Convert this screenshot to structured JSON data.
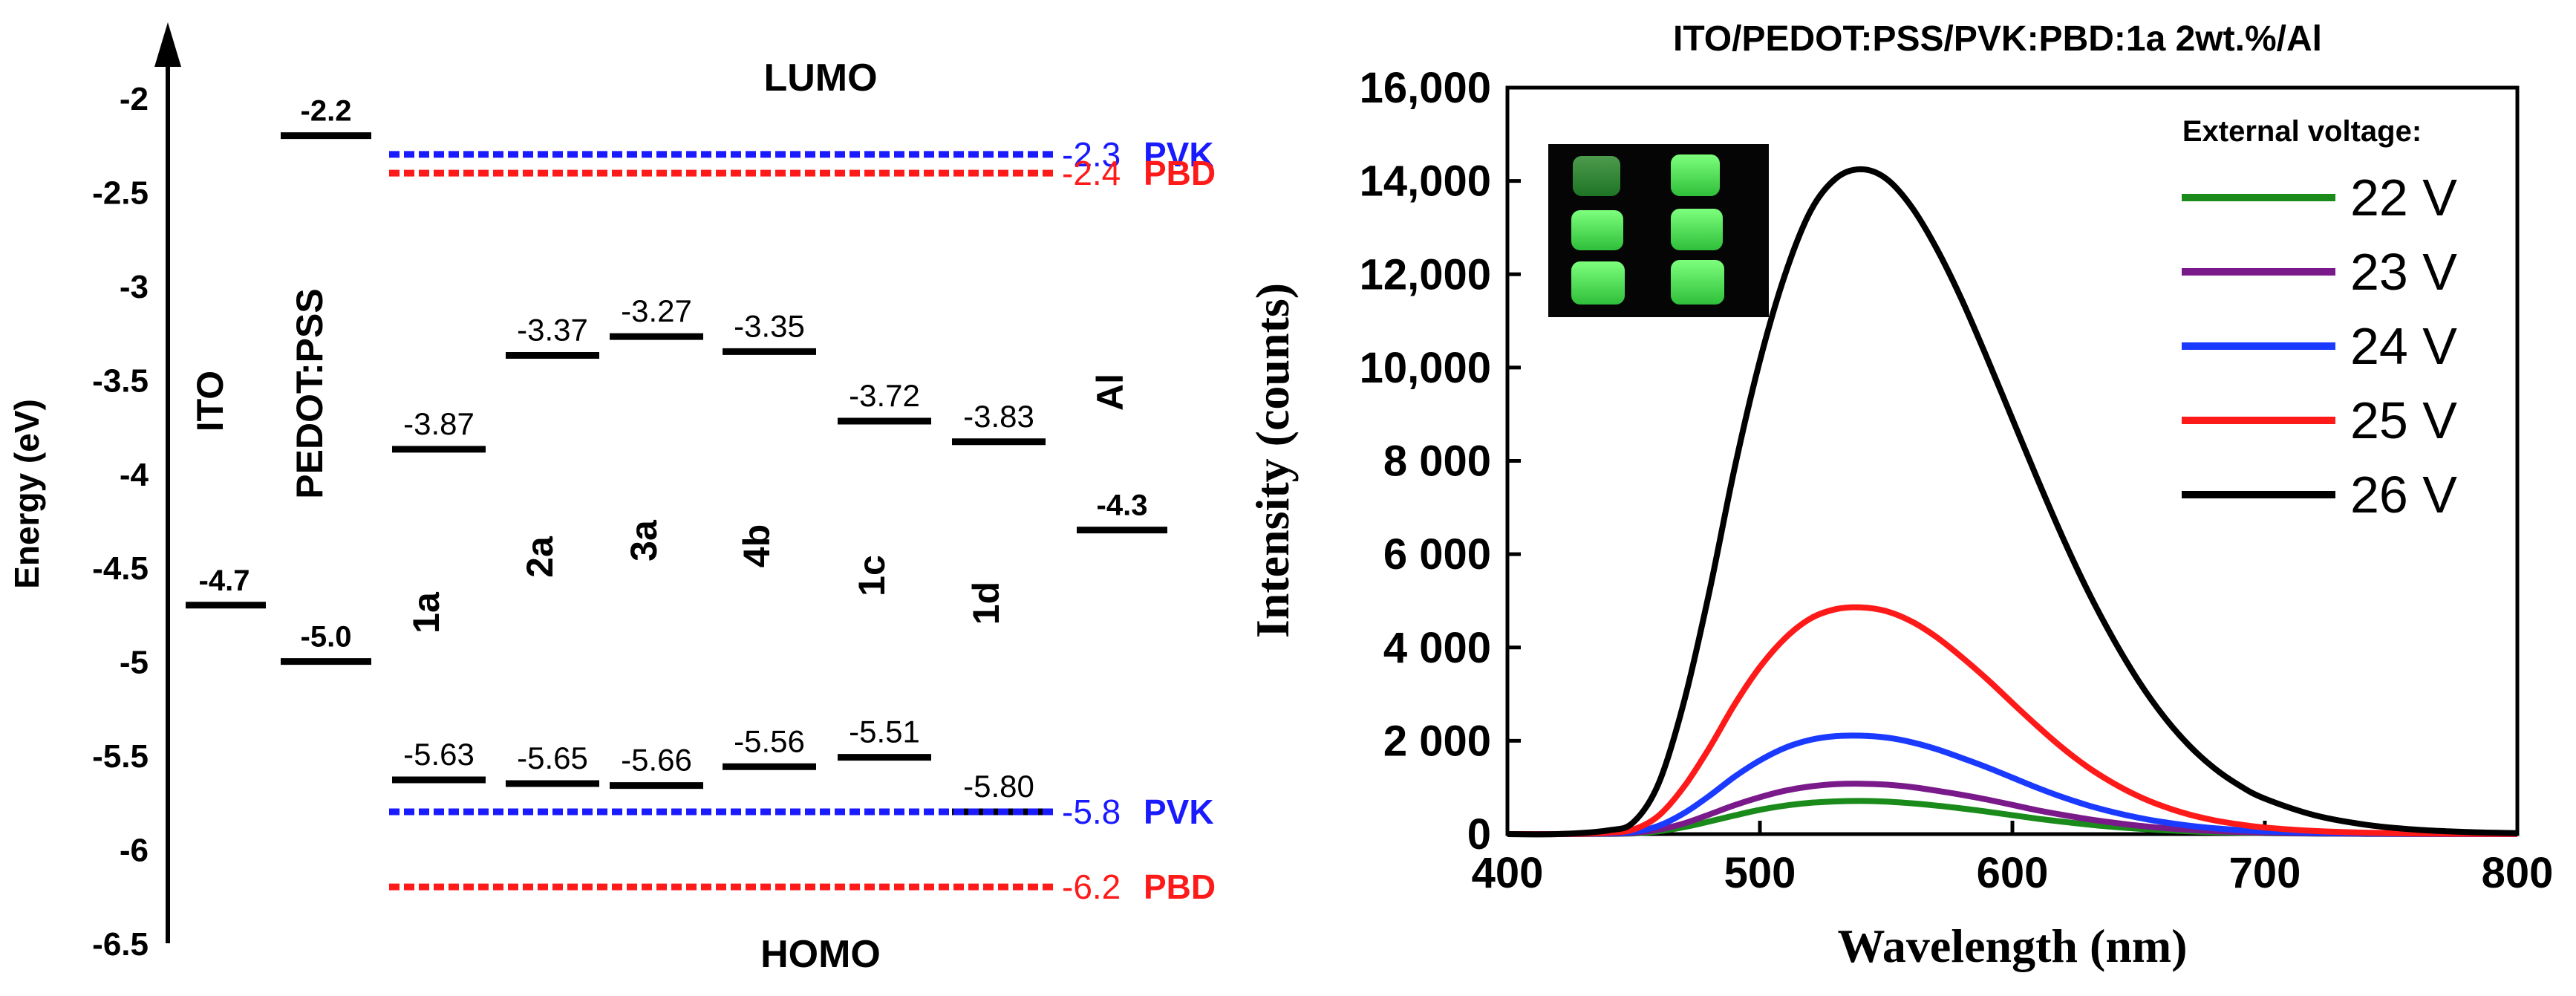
{
  "chart_data": [
    {
      "type": "energy-level-diagram",
      "ylabel": "Energy (eV)",
      "ylim": [
        -6.5,
        -1.8
      ],
      "yticks": [
        -2,
        -2.5,
        -3,
        -3.5,
        -4,
        -4.5,
        -5,
        -5.5,
        -6,
        -6.5
      ],
      "ytick_labels": [
        "-2",
        "-2.5",
        "-3",
        "-3.5",
        "-4",
        "-4.5",
        "-5",
        "-5.5",
        "-6",
        "-6.5"
      ],
      "section_labels": {
        "lumo": "LUMO",
        "homo": "HOMO"
      },
      "electrodes": [
        {
          "name": "ITO",
          "value": -4.7,
          "label": "-4.7"
        },
        {
          "name": "PEDOT:PSS",
          "value": -5.0,
          "label": "-5.0",
          "lumo": -2.2,
          "lumo_label": "-2.2"
        },
        {
          "name": "Al",
          "value": -4.3,
          "label": "-4.3"
        }
      ],
      "materials": [
        {
          "name": "1a",
          "lumo": -3.87,
          "homo": -5.63,
          "lumo_label": "-3.87",
          "homo_label": "-5.63"
        },
        {
          "name": "2a",
          "lumo": -3.37,
          "homo": -5.65,
          "lumo_label": "-3.37",
          "homo_label": "-5.65"
        },
        {
          "name": "3a",
          "lumo": -3.27,
          "homo": -5.66,
          "lumo_label": "-3.27",
          "homo_label": "-5.66"
        },
        {
          "name": "4b",
          "lumo": -3.35,
          "homo": -5.56,
          "lumo_label": "-3.35",
          "homo_label": "-5.56"
        },
        {
          "name": "1c",
          "lumo": -3.72,
          "homo": -5.51,
          "lumo_label": "-3.72",
          "homo_label": "-5.51"
        },
        {
          "name": "1d",
          "lumo": -3.83,
          "homo": -5.8,
          "lumo_label": "-3.83",
          "homo_label": "-5.80"
        }
      ],
      "hosts": [
        {
          "name": "PVK",
          "lumo": -2.3,
          "homo": -5.8,
          "lumo_label": "-2.3",
          "homo_label": "-5.8",
          "color": "#1a1aff"
        },
        {
          "name": "PBD",
          "lumo": -2.4,
          "homo": -6.2,
          "lumo_label": "-2.4",
          "homo_label": "-6.2",
          "color": "#ff1a1a"
        }
      ]
    },
    {
      "type": "line",
      "title": "ITO/PEDOT:PSS/PVK:PBD:1a 2wt.%/Al",
      "xlabel": "Wavelength (nm)",
      "ylabel": "Intensity (counts)",
      "xlim": [
        400,
        800
      ],
      "ylim": [
        0,
        16000
      ],
      "xticks": [
        400,
        500,
        600,
        700,
        800
      ],
      "xtick_labels": [
        "400",
        "500",
        "600",
        "700",
        "800"
      ],
      "yticks": [
        0,
        2000,
        4000,
        6000,
        8000,
        10000,
        12000,
        14000,
        16000
      ],
      "ytick_labels": [
        "0",
        "2 000",
        "4 000",
        "6 000",
        "8 000",
        "10,000",
        "12,000",
        "14,000",
        "16,000"
      ],
      "legend_title": "External voltage:",
      "legend_position": "top-right",
      "inset": "photo of six glowing green device pixels",
      "x": [
        400,
        420,
        440,
        450,
        460,
        470,
        480,
        490,
        500,
        510,
        520,
        530,
        540,
        550,
        560,
        570,
        580,
        590,
        600,
        610,
        620,
        630,
        640,
        650,
        660,
        670,
        680,
        690,
        700,
        720,
        740,
        760,
        780,
        800
      ],
      "series": [
        {
          "name": "22 V",
          "color": "#1a8a1a",
          "values": [
            0,
            0,
            5,
            15,
            60,
            150,
            270,
            400,
            520,
            610,
            670,
            700,
            710,
            695,
            660,
            610,
            550,
            480,
            405,
            330,
            265,
            205,
            155,
            115,
            85,
            60,
            42,
            29,
            20,
            10,
            5,
            2,
            1,
            0
          ]
        },
        {
          "name": "23 V",
          "color": "#7a1a8a",
          "values": [
            0,
            0,
            8,
            25,
            95,
            230,
            420,
            620,
            790,
            930,
            1020,
            1070,
            1080,
            1060,
            1010,
            930,
            840,
            740,
            625,
            510,
            410,
            320,
            245,
            180,
            130,
            92,
            64,
            44,
            30,
            14,
            7,
            3,
            1,
            0
          ]
        },
        {
          "name": "24 V",
          "color": "#1a3aff",
          "values": [
            0,
            0,
            15,
            45,
            180,
            450,
            820,
            1230,
            1580,
            1850,
            2020,
            2100,
            2110,
            2070,
            1970,
            1820,
            1630,
            1430,
            1210,
            990,
            790,
            615,
            470,
            350,
            255,
            180,
            125,
            86,
            58,
            27,
            13,
            6,
            2,
            0
          ]
        },
        {
          "name": "25 V",
          "color": "#ff1a1a",
          "values": [
            0,
            0,
            30,
            100,
            400,
            1020,
            1850,
            2780,
            3580,
            4200,
            4620,
            4820,
            4860,
            4780,
            4560,
            4220,
            3790,
            3320,
            2810,
            2310,
            1840,
            1430,
            1090,
            810,
            590,
            420,
            295,
            205,
            140,
            65,
            30,
            14,
            6,
            2
          ]
        },
        {
          "name": "26 V",
          "color": "#000000",
          "values": [
            0,
            0,
            80,
            260,
            1100,
            2850,
            5200,
            7850,
            10150,
            12000,
            13350,
            14050,
            14250,
            14050,
            13450,
            12550,
            11450,
            10200,
            8900,
            7600,
            6350,
            5200,
            4180,
            3280,
            2520,
            1900,
            1410,
            1040,
            760,
            400,
            200,
            95,
            45,
            20
          ]
        }
      ]
    }
  ]
}
